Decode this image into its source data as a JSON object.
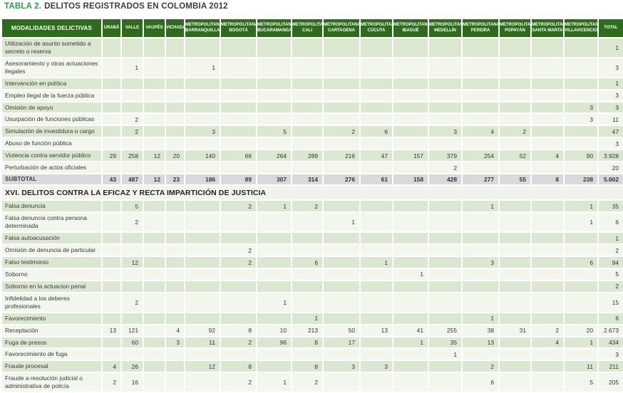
{
  "title": {
    "prefix": "TABLA 2.",
    "text": "DELITOS REGISTRADOS EN COLOMBIA 2012"
  },
  "colors": {
    "header_green": "#2e6b1c",
    "title_green": "#2f9a44",
    "row_green": "#dce7d1",
    "row_light": "#f3f6ed",
    "subtotal_gray": "#d9d9d9",
    "section_bg": "#f3f3ed"
  },
  "table": {
    "label_header": "MODALIDADES DELICTIVAS",
    "columns": [
      {
        "lines": [
          "URABÁ"
        ]
      },
      {
        "lines": [
          "VALLE"
        ]
      },
      {
        "lines": [
          "VAUPÉS"
        ]
      },
      {
        "lines": [
          "VICHADA"
        ]
      },
      {
        "lines": [
          "METROPOLITANA",
          "BARRANQUILLA"
        ]
      },
      {
        "lines": [
          "METROPOLITANA",
          "BOGOTÁ"
        ]
      },
      {
        "lines": [
          "METROPOLITANA",
          "BUCARAMANGA"
        ]
      },
      {
        "lines": [
          "METROPOLITANA",
          "CALI"
        ]
      },
      {
        "lines": [
          "METROPOLITANA",
          "CARTAGENA"
        ]
      },
      {
        "lines": [
          "METROPOLITANA",
          "CÚCUTA"
        ]
      },
      {
        "lines": [
          "METROPOLITANA",
          "IBAGUÉ"
        ]
      },
      {
        "lines": [
          "METROPOLITANA",
          "MEDELLÍN"
        ]
      },
      {
        "lines": [
          "METROPOLITANA",
          "PEREIRA"
        ]
      },
      {
        "lines": [
          "METROPOLITANA",
          "POPAYÁN"
        ]
      },
      {
        "lines": [
          "METROPOLITANA",
          "SANTA MARTA"
        ]
      },
      {
        "lines": [
          "METROPOLITANA",
          "VILLAVICENCIO"
        ]
      },
      {
        "lines": [
          "TOTAL"
        ]
      }
    ],
    "rows": [
      {
        "type": "data",
        "label": "Utilización de asunto sometido a secreto o reserva",
        "values": [
          "",
          "",
          "",
          "",
          "",
          "",
          "",
          "",
          "",
          "",
          "",
          "",
          "",
          "",
          "",
          "",
          "1"
        ]
      },
      {
        "type": "data",
        "label": "Asesoramiento y otras actuaciones ilegales",
        "values": [
          "",
          "1",
          "",
          "",
          "1",
          "",
          "",
          "",
          "",
          "",
          "",
          "",
          "",
          "",
          "",
          "",
          "3"
        ]
      },
      {
        "type": "data",
        "label": "Intervención en política",
        "values": [
          "",
          "",
          "",
          "",
          "",
          "",
          "",
          "",
          "",
          "",
          "",
          "",
          "",
          "",
          "",
          "",
          "1"
        ]
      },
      {
        "type": "data",
        "label": "Empleo ilegal de la fuerza pública",
        "values": [
          "",
          "",
          "",
          "",
          "",
          "",
          "",
          "",
          "",
          "",
          "",
          "",
          "",
          "",
          "",
          "",
          "3"
        ]
      },
      {
        "type": "data",
        "label": "Omisión de apoyo",
        "values": [
          "",
          "",
          "",
          "",
          "",
          "",
          "",
          "",
          "",
          "",
          "",
          "",
          "",
          "",
          "",
          "3",
          "3"
        ]
      },
      {
        "type": "data",
        "label": "Usurpación de funciones públicas",
        "values": [
          "",
          "2",
          "",
          "",
          "",
          "",
          "",
          "",
          "",
          "",
          "",
          "",
          "",
          "",
          "",
          "3",
          "11"
        ]
      },
      {
        "type": "data",
        "label": "Simulación de investidura o cargo",
        "values": [
          "",
          "2",
          "",
          "",
          "3",
          "",
          "5",
          "",
          "2",
          "6",
          "",
          "3",
          "4",
          "2",
          "",
          "",
          "47"
        ]
      },
      {
        "type": "data",
        "label": "Abuso de función pública",
        "values": [
          "",
          "",
          "",
          "",
          "",
          "",
          "",
          "",
          "",
          "",
          "",
          "",
          "",
          "",
          "",
          "",
          "3"
        ]
      },
      {
        "type": "data",
        "label": "Violencia contra servidor público",
        "values": [
          "29",
          "258",
          "12",
          "20",
          "140",
          "66",
          "264",
          "289",
          "216",
          "47",
          "157",
          "379",
          "254",
          "52",
          "4",
          "90",
          "3.928"
        ]
      },
      {
        "type": "data",
        "label": "Perturbación de actos oficiales",
        "values": [
          "",
          "",
          "",
          "",
          "",
          "",
          "",
          "",
          "",
          "",
          "",
          "2",
          "",
          "",
          "",
          "",
          "20"
        ]
      },
      {
        "type": "subtotal",
        "label": "SUBTOTAL",
        "values": [
          "43",
          "487",
          "12",
          "23",
          "186",
          "89",
          "307",
          "314",
          "276",
          "61",
          "158",
          "428",
          "277",
          "55",
          "8",
          "238",
          "5.602"
        ]
      },
      {
        "type": "section",
        "label": "XVI. DELITOS CONTRA LA EFICAZ Y RECTA IMPARTICIÓN DE JUSTICIA"
      },
      {
        "type": "data",
        "label": "Falsa denuncia",
        "values": [
          "",
          "5",
          "",
          "",
          "",
          "2",
          "1",
          "2",
          "",
          "",
          "",
          "",
          "1",
          "",
          "",
          "1",
          "35"
        ]
      },
      {
        "type": "data",
        "label": "Falsa denuncia contra persona determinada",
        "values": [
          "",
          "2",
          "",
          "",
          "",
          "",
          "",
          "",
          "1",
          "",
          "",
          "",
          "",
          "",
          "",
          "1",
          "6"
        ]
      },
      {
        "type": "data",
        "label": "Falsa autoacusación",
        "values": [
          "",
          "",
          "",
          "",
          "",
          "",
          "",
          "",
          "",
          "",
          "",
          "",
          "",
          "",
          "",
          "",
          "1"
        ]
      },
      {
        "type": "data",
        "label": "Omisión de denuncia de particular",
        "values": [
          "",
          "",
          "",
          "",
          "",
          "2",
          "",
          "",
          "",
          "",
          "",
          "",
          "",
          "",
          "",
          "",
          "2"
        ]
      },
      {
        "type": "data",
        "label": "Falso testimonio",
        "values": [
          "",
          "12",
          "",
          "",
          "",
          "2",
          "",
          "6",
          "",
          "1",
          "",
          "",
          "3",
          "",
          "",
          "6",
          "94"
        ]
      },
      {
        "type": "data",
        "label": "Soborno",
        "values": [
          "",
          "",
          "",
          "",
          "",
          "",
          "",
          "",
          "",
          "",
          "1",
          "",
          "",
          "",
          "",
          "",
          "5"
        ]
      },
      {
        "type": "data",
        "label": "Soborno en la actuacion penal",
        "values": [
          "",
          "",
          "",
          "",
          "",
          "",
          "",
          "",
          "",
          "",
          "",
          "",
          "",
          "",
          "",
          "",
          "2"
        ]
      },
      {
        "type": "data",
        "label": "Infidelidad a los deberes profesionales",
        "values": [
          "",
          "2",
          "",
          "",
          "",
          "",
          "1",
          "",
          "",
          "",
          "",
          "",
          "",
          "",
          "",
          "",
          "15"
        ]
      },
      {
        "type": "data",
        "label": "Favorecimiento",
        "values": [
          "",
          "",
          "",
          "",
          "",
          "",
          "",
          "1",
          "",
          "",
          "",
          "",
          "1",
          "",
          "",
          "",
          "6"
        ]
      },
      {
        "type": "data",
        "label": "Receptación",
        "values": [
          "13",
          "121",
          "",
          "4",
          "92",
          "8",
          "10",
          "213",
          "50",
          "13",
          "41",
          "255",
          "38",
          "31",
          "2",
          "20",
          "2.673"
        ]
      },
      {
        "type": "data",
        "label": "Fuga de presos",
        "values": [
          "",
          "60",
          "",
          "3",
          "11",
          "2",
          "96",
          "8",
          "17",
          "",
          "1",
          "35",
          "13",
          "",
          "4",
          "1",
          "434"
        ]
      },
      {
        "type": "data",
        "label": "Favorecimiento de fuga",
        "values": [
          "",
          "",
          "",
          "",
          "",
          "",
          "",
          "",
          "",
          "",
          "",
          "1",
          "",
          "",
          "",
          "",
          "3"
        ]
      },
      {
        "type": "data",
        "label": "Fraude procesal",
        "values": [
          "4",
          "26",
          "",
          "",
          "12",
          "8",
          "",
          "8",
          "3",
          "3",
          "",
          "",
          "2",
          "",
          "",
          "11",
          "211"
        ]
      },
      {
        "type": "data",
        "label": "Fraude a resolución judicial o administrativa de policía",
        "values": [
          "2",
          "16",
          "",
          "",
          "",
          "2",
          "1",
          "2",
          "",
          "",
          "",
          "",
          "6",
          "",
          "",
          "5",
          "205"
        ]
      }
    ]
  }
}
